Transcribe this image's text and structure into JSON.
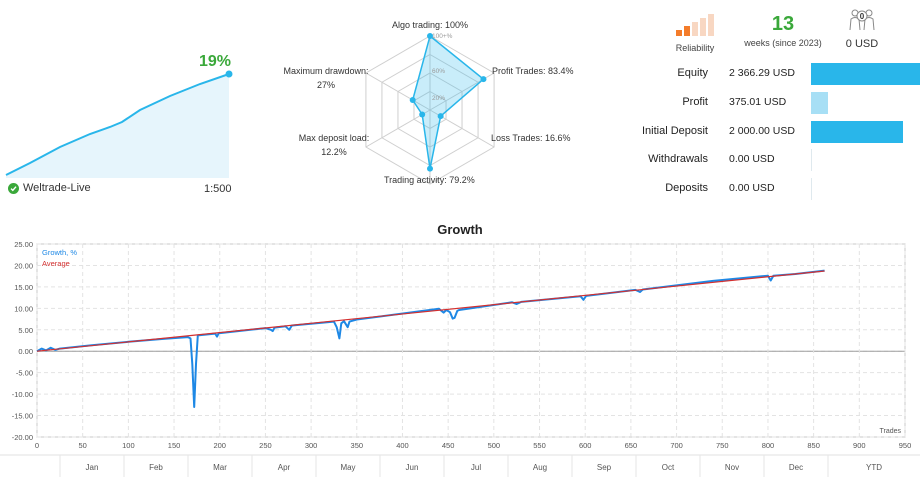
{
  "mini": {
    "growth_value": "19%",
    "account": "Weltrade-Live",
    "leverage": "1:500",
    "line_color": "#29b6ea"
  },
  "radar": {
    "labels": {
      "algo": "Algo trading: 100%",
      "profit": "Profit Trades: 83.4%",
      "loss": "Loss Trades: 16.6%",
      "activity": "Trading activity: 79.2%",
      "deposit": "Max deposit load:",
      "deposit_val": "12.2%",
      "drawdown": "Maximum drawdown:",
      "drawdown_val": "27%"
    },
    "ring_labels": [
      "100+%",
      "60%",
      "20%"
    ],
    "values": [
      100,
      83.4,
      16.6,
      79.2,
      12.2,
      27
    ]
  },
  "reliability": {
    "label": "Reliability",
    "bars_filled": 2,
    "bars_total": 5
  },
  "weeks": {
    "value": "13",
    "label": "weeks (since 2023)"
  },
  "subscribers": {
    "count": "0",
    "label": "0 USD"
  },
  "stats": [
    {
      "name": "Equity",
      "value": "2 366.29 USD",
      "share": 1.0,
      "style": "full"
    },
    {
      "name": "Profit",
      "value": "375.01 USD",
      "share": 0.16,
      "style": "light"
    },
    {
      "name": "Initial Deposit",
      "value": "2 000.00 USD",
      "share": 0.84,
      "style": "full"
    },
    {
      "name": "Withdrawals",
      "value": "0.00 USD",
      "share": 0,
      "style": "empty"
    },
    {
      "name": "Deposits",
      "value": "0.00 USD",
      "share": 0,
      "style": "empty"
    }
  ],
  "growth": {
    "title": "Growth"
  },
  "chart_data": {
    "type": "line",
    "title": "Growth",
    "xlabel": "Trades",
    "ylabel": "",
    "xlim": [
      0,
      950
    ],
    "ylim": [
      -20,
      25
    ],
    "x_ticks": [
      0,
      50,
      100,
      150,
      200,
      250,
      300,
      350,
      400,
      450,
      500,
      550,
      600,
      650,
      700,
      750,
      800,
      850,
      900,
      950
    ],
    "y_ticks": [
      "25.00",
      "20.00",
      "15.00",
      "10.00",
      "5.00",
      "0.00",
      "-5.00",
      "-10.00",
      "-15.00",
      "-20.00"
    ],
    "months": [
      "Jan",
      "Feb",
      "Mar",
      "Apr",
      "May",
      "Jun",
      "Jul",
      "Aug",
      "Sep",
      "Oct",
      "Nov",
      "Dec",
      "YTD"
    ],
    "legend": [
      "Growth, %",
      "Average"
    ],
    "series": [
      {
        "name": "Growth, %",
        "color": "#1e88e5",
        "points": [
          [
            0,
            0
          ],
          [
            5,
            0.6
          ],
          [
            10,
            0.2
          ],
          [
            15,
            0.8
          ],
          [
            20,
            0.3
          ],
          [
            25,
            0.6
          ],
          [
            60,
            1.4
          ],
          [
            100,
            2.2
          ],
          [
            140,
            2.9
          ],
          [
            165,
            3.3
          ],
          [
            168,
            3.0
          ],
          [
            170,
            -3
          ],
          [
            172,
            -13
          ],
          [
            174,
            -3
          ],
          [
            176,
            3.7
          ],
          [
            195,
            4.1
          ],
          [
            197,
            3.4
          ],
          [
            199,
            4.2
          ],
          [
            250,
            5.4
          ],
          [
            256,
            5.0
          ],
          [
            258,
            4.7
          ],
          [
            260,
            5.5
          ],
          [
            272,
            5.8
          ],
          [
            276,
            5.0
          ],
          [
            279,
            6.0
          ],
          [
            325,
            6.9
          ],
          [
            328,
            5.6
          ],
          [
            331,
            3.0
          ],
          [
            333,
            6.5
          ],
          [
            336,
            7.0
          ],
          [
            340,
            5.6
          ],
          [
            342,
            6.9
          ],
          [
            350,
            7.4
          ],
          [
            440,
            9.9
          ],
          [
            445,
            9.0
          ],
          [
            448,
            9.6
          ],
          [
            452,
            9.1
          ],
          [
            455,
            7.6
          ],
          [
            457,
            7.8
          ],
          [
            460,
            9.4
          ],
          [
            462,
            9.6
          ],
          [
            520,
            11.4
          ],
          [
            525,
            11.0
          ],
          [
            530,
            11.5
          ],
          [
            595,
            12.8
          ],
          [
            598,
            12.0
          ],
          [
            601,
            12.9
          ],
          [
            655,
            14.3
          ],
          [
            660,
            13.8
          ],
          [
            663,
            14.4
          ],
          [
            740,
            16.4
          ],
          [
            800,
            17.6
          ],
          [
            803,
            16.5
          ],
          [
            806,
            17.6
          ],
          [
            830,
            18.0
          ],
          [
            862,
            18.8
          ]
        ]
      },
      {
        "name": "Average",
        "color": "#d32f2f",
        "points": [
          [
            0,
            0
          ],
          [
            862,
            18.7
          ]
        ]
      }
    ]
  }
}
